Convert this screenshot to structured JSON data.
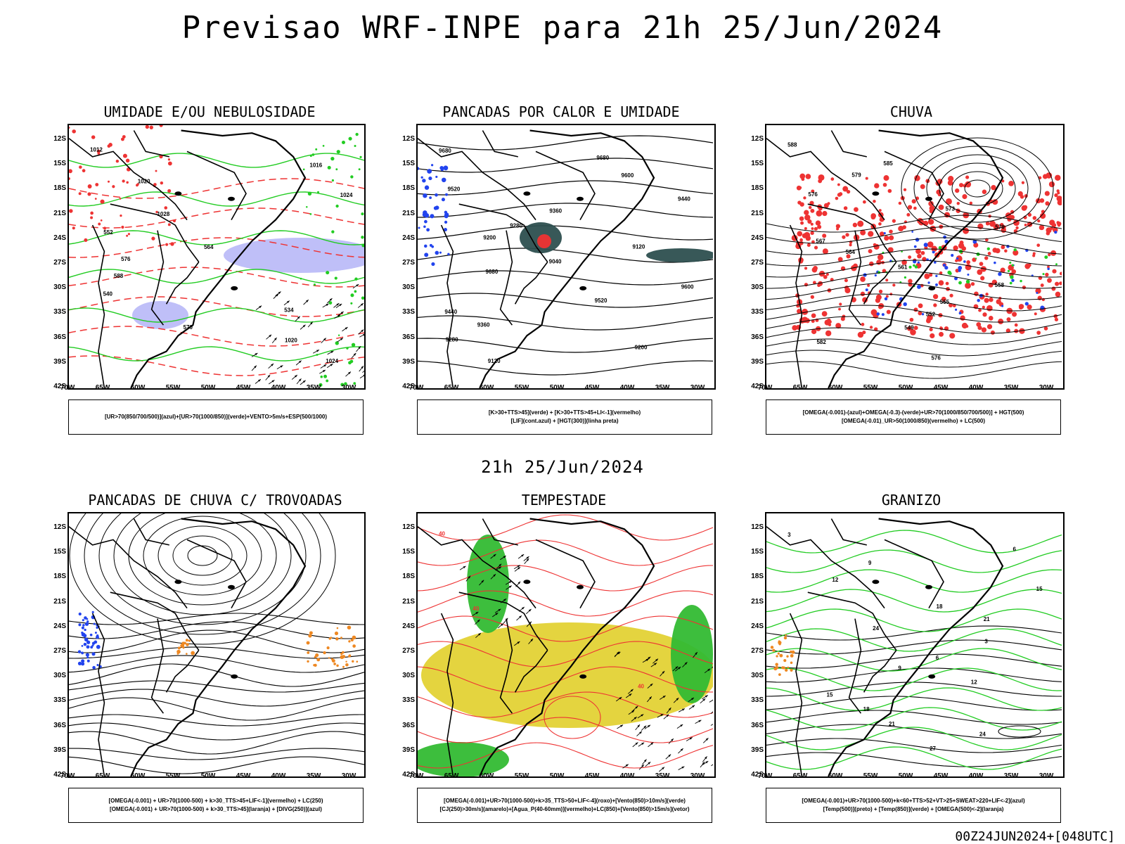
{
  "title": "Previsao WRF-INPE  para 21h 25/Jun/2024",
  "subtitle": "21h 25/Jun/2024",
  "footer": "00Z24JUN2024+[048UTC]",
  "y_ticks": [
    "12S",
    "15S",
    "18S",
    "21S",
    "24S",
    "27S",
    "30S",
    "33S",
    "36S",
    "39S",
    "42S"
  ],
  "x_ticks": [
    "70W",
    "65W",
    "60W",
    "55W",
    "50W",
    "45W",
    "40W",
    "35W",
    "30W"
  ],
  "colors": {
    "green_contour": "#22cc22",
    "red_contour": "#ee3333",
    "blue_shade": "#a9a9f5",
    "dark_teal": "#2d4f4f",
    "blue_dots": "#2244ee",
    "yellow_shade": "#e3d235",
    "orange_dots": "#ee8822",
    "coast_line": "#000000"
  },
  "panels": [
    {
      "title": "UMIDADE E/OU NEBULOSIDADE",
      "legend": [
        "[UR>70(850/700/500)](azul)+[UR>70(1000/850)](verde)+VENTO>5m/s+ESP(500/1000)"
      ],
      "labels": [
        "1012",
        "1016",
        "1020",
        "1024",
        "1028",
        "552",
        "564",
        "576",
        "588",
        "540",
        "534",
        "570",
        "1020",
        "1024"
      ]
    },
    {
      "title": "PANCADAS POR CALOR E UMIDADE",
      "legend": [
        "[K>30+TTS>45](verde) + [K>30+TTS>45+LI<-1](vermelho)",
        "[LIF](cont.azul) + [HGT(300)](linha preta)"
      ],
      "labels": [
        "9680",
        "9680",
        "9600",
        "9520",
        "9440",
        "9360",
        "9280",
        "9200",
        "9120",
        "9040",
        "9680",
        "9600",
        "9520",
        "9440",
        "9360",
        "9280",
        "9200",
        "9120"
      ]
    },
    {
      "title": "CHUVA",
      "legend": [
        "[OMEGA(-0.001)-(azul)+OMEGA(-0.3)-(verde)+UR>70(1000/850/700/500)] + HGT(500)",
        "[OMEGA(-0.01)_UR>50(1000/850)(vermelho) + LC(500)"
      ],
      "labels": [
        "588",
        "585",
        "579",
        "576",
        "573",
        "570",
        "567",
        "564",
        "561",
        "558",
        "555",
        "552",
        "549",
        "582",
        "576"
      ]
    },
    {
      "title": "PANCADAS DE CHUVA C/ TROVOADAS",
      "legend": [
        "[OMEGA(-0.001) + UR>70(1000-500) + k>30_TTS>45+LIF<-1](vermelho) + LC(250)",
        "[OMEGA(-0.001) + UR>70(1000-500) + k>30_TTS>45](laranja) + [DIVG(250)](azul)"
      ],
      "labels": []
    },
    {
      "title": "TEMPESTADE",
      "legend": [
        "[OMEGA(-0.001)+UR>70(1000-500)+k>35_TTS>50+LIF<-4](roxo)+[Vento(850)>10m/s](verde)",
        "[CJ(250)>30m/s](amarelo)+[Agua_P(40-60mm)](vermelho)+LC(850)+[Vento(850)>15m/s](vetor)"
      ],
      "labels": [
        "40",
        "40",
        "40"
      ]
    },
    {
      "title": "GRANIZO",
      "legend": [
        "[OMEGA(-0.001)+UR>70(1000-500)+k<60+TTS>52+VT>25+SWEAT>220+LIF<-2](azul)",
        "[Temp(500)](preto) + [Temp(850)](verde) + [OMEGA(500)<-2](laranja)"
      ],
      "labels": [
        "3",
        "6",
        "9",
        "12",
        "15",
        "18",
        "21",
        "24",
        "3",
        "6",
        "9",
        "12",
        "15",
        "18",
        "21",
        "24",
        "27"
      ]
    }
  ]
}
